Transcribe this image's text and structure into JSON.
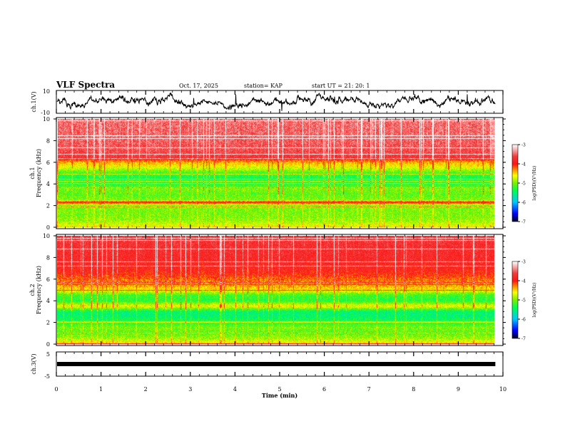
{
  "header": {
    "title": "VLF Spectra",
    "date": "Oct. 17, 2025",
    "station": "station= KAP",
    "start": "start  UT =   21: 20: 1"
  },
  "chart_data": [
    {
      "type": "line",
      "name": "ch1-waveform",
      "ylabel": "ch.1(V)",
      "ylim": [
        -10,
        10
      ],
      "ytick_labels": [
        "10",
        "-10"
      ],
      "x_range_min": [
        0,
        9.83
      ],
      "description_level": "noisy waveform roughly between -8 and 8 V"
    },
    {
      "type": "heatmap",
      "name": "ch1-spectrogram",
      "ylabel": "ch.1\nFrequency (kHz)",
      "ylabel_lines": [
        "ch.1",
        "Frequency (kHz)"
      ],
      "ylim": [
        0,
        10
      ],
      "ytick_labels": [
        "0",
        "2",
        "4",
        "6",
        "8",
        "10"
      ],
      "profile": {
        "freq_khz": [
          0,
          0.5,
          1,
          2,
          2.3,
          2.5,
          3,
          3.5,
          4,
          4.5,
          5,
          5.5,
          6,
          6.5,
          7,
          8,
          10
        ],
        "log_psd": [
          -4.6,
          -4.9,
          -5.0,
          -5.0,
          -3.8,
          -5.0,
          -5.1,
          -5.0,
          -5.3,
          -5.4,
          -5.2,
          -4.7,
          -4.4,
          -3.7,
          -3.6,
          -3.5,
          -3.45
        ]
      },
      "colorbar": {
        "label": "log(PSD)(V²/Hz)",
        "range": [
          -7,
          -3
        ],
        "tick_labels": [
          "-3",
          "-4",
          "-5",
          "-6",
          "-7"
        ]
      }
    },
    {
      "type": "heatmap",
      "name": "ch2-spectrogram",
      "ylabel_lines": [
        "ch.2",
        "Frequency (kHz)"
      ],
      "ylim": [
        0,
        10
      ],
      "ytick_labels": [
        "0",
        "2",
        "4",
        "6",
        "8",
        "10"
      ],
      "profile": {
        "freq_khz": [
          0,
          0.5,
          1,
          1.5,
          2,
          2.5,
          3,
          3.5,
          4,
          4.5,
          5,
          5.5,
          6,
          6.5,
          7,
          8,
          10
        ],
        "log_psd": [
          -4.5,
          -4.9,
          -5.1,
          -5.0,
          -5.3,
          -5.5,
          -5.5,
          -4.6,
          -5.3,
          -5.2,
          -4.6,
          -4.3,
          -4.2,
          -4.0,
          -3.9,
          -3.8,
          -3.7
        ]
      },
      "colorbar": {
        "label": "log(PSD)(V²/Hz)",
        "range": [
          -7,
          -3
        ],
        "tick_labels": [
          "-3",
          "-4",
          "-5",
          "-6",
          "-7"
        ]
      }
    },
    {
      "type": "line",
      "name": "ch3-waveform",
      "ylabel": "ch.3(V)",
      "ylim": [
        -5,
        5
      ],
      "ytick_labels": [
        "5",
        "-5"
      ],
      "level_v": 0,
      "x_range_min": [
        0,
        9.83
      ]
    }
  ],
  "xaxis": {
    "label": "Time (min)",
    "range": [
      0,
      10
    ],
    "tick_labels": [
      "0",
      "1",
      "2",
      "3",
      "4",
      "5",
      "6",
      "7",
      "8",
      "9",
      "10"
    ]
  }
}
